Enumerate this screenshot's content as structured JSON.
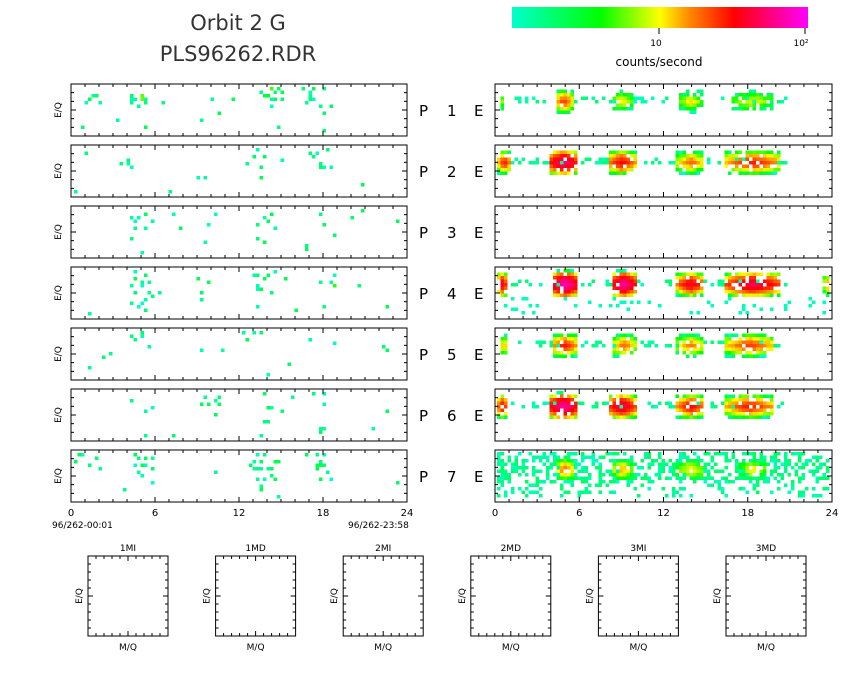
{
  "header": {
    "title_line1": "Orbit 2 G",
    "title_line2": "PLS96262.RDR"
  },
  "colorbar": {
    "label": "counts/second",
    "tick_labels": [
      "10",
      "10²"
    ],
    "tick_values": [
      10,
      100
    ],
    "range": [
      1,
      100
    ],
    "scale": "log",
    "stops": [
      "#00ffcc",
      "#00ff00",
      "#ffff00",
      "#ff8800",
      "#ff0000",
      "#ff00ff"
    ]
  },
  "chart_data": {
    "type": "heatmap",
    "x_range": [
      0,
      24
    ],
    "x_ticks": [
      0,
      6,
      12,
      18,
      24
    ],
    "x_tick_labels": [
      "0",
      "6",
      "12",
      "18",
      "24"
    ],
    "ylabel": "E/Q",
    "start_time_label": "96/262-00:01",
    "end_time_label": "96/262-23:58",
    "panels": [
      {
        "row_label": "P",
        "num": "1",
        "e_label": "E",
        "left_clusters": [
          {
            "x": 1,
            "d": 0.15
          },
          {
            "x": 5,
            "d": 0.35
          },
          {
            "x": 10,
            "d": 0.12
          },
          {
            "x": 14.5,
            "d": 0.45
          },
          {
            "x": 17.5,
            "d": 0.3
          }
        ],
        "right_bands": [
          {
            "x0": 0.2,
            "x1": 0.5,
            "v": 8
          },
          {
            "x0": 4.2,
            "x1": 5.5,
            "v": 25
          },
          {
            "x0": 8.3,
            "x1": 9.8,
            "v": 12
          },
          {
            "x0": 13.2,
            "x1": 14.8,
            "v": 12
          },
          {
            "x0": 16.8,
            "x1": 20,
            "v": 10
          }
        ]
      },
      {
        "row_label": "P",
        "num": "2",
        "e_label": "E",
        "left_clusters": [
          {
            "x": 4,
            "d": 0.15
          },
          {
            "x": 9,
            "d": 0.2
          },
          {
            "x": 13.5,
            "d": 0.15
          },
          {
            "x": 18,
            "d": 0.25
          }
        ],
        "right_bands": [
          {
            "x0": 0.1,
            "x1": 1.0,
            "v": 30
          },
          {
            "x0": 3.8,
            "x1": 5.8,
            "v": 60
          },
          {
            "x0": 8.0,
            "x1": 10.0,
            "v": 35
          },
          {
            "x0": 13.0,
            "x1": 15.0,
            "v": 20
          },
          {
            "x0": 16.5,
            "x1": 20.5,
            "v": 30
          }
        ]
      },
      {
        "row_label": "P",
        "num": "3",
        "e_label": "E",
        "left_clusters": [
          {
            "x": 5,
            "d": 0.2
          },
          {
            "x": 10,
            "d": 0.15
          },
          {
            "x": 14,
            "d": 0.25
          },
          {
            "x": 18.5,
            "d": 0.3
          }
        ],
        "right_bands": []
      },
      {
        "row_label": "P",
        "num": "4",
        "e_label": "E",
        "left_clusters": [
          {
            "x": 5,
            "d": 0.4
          },
          {
            "x": 9,
            "d": 0.15
          },
          {
            "x": 14,
            "d": 0.2
          },
          {
            "x": 19,
            "d": 0.35
          }
        ],
        "right_bands": [
          {
            "x0": 0,
            "x1": 0.8,
            "v": 40
          },
          {
            "x0": 4.0,
            "x1": 5.8,
            "v": 80
          },
          {
            "x0": 8.3,
            "x1": 10.0,
            "v": 70
          },
          {
            "x0": 13.0,
            "x1": 15.0,
            "v": 40
          },
          {
            "x0": 16.5,
            "x1": 20.5,
            "v": 50
          },
          {
            "x0": 23.6,
            "x1": 24,
            "v": 20
          }
        ]
      },
      {
        "row_label": "P",
        "num": "5",
        "e_label": "E",
        "left_clusters": [
          {
            "x": 3,
            "d": 0.08
          },
          {
            "x": 13,
            "d": 0.06
          },
          {
            "x": 17,
            "d": 0.1
          }
        ],
        "right_bands": [
          {
            "x0": 0.2,
            "x1": 0.8,
            "v": 15
          },
          {
            "x0": 4.0,
            "x1": 5.8,
            "v": 30
          },
          {
            "x0": 8.3,
            "x1": 10.0,
            "v": 20
          },
          {
            "x0": 13.0,
            "x1": 15.0,
            "v": 18
          },
          {
            "x0": 16.5,
            "x1": 20.0,
            "v": 25
          }
        ]
      },
      {
        "row_label": "P",
        "num": "6",
        "e_label": "E",
        "left_clusters": [
          {
            "x": 5,
            "d": 0.12
          },
          {
            "x": 10,
            "d": 0.12
          },
          {
            "x": 14,
            "d": 0.25
          },
          {
            "x": 18,
            "d": 0.15
          }
        ],
        "right_bands": [
          {
            "x0": 0,
            "x1": 0.8,
            "v": 35
          },
          {
            "x0": 3.8,
            "x1": 5.8,
            "v": 70
          },
          {
            "x0": 8.0,
            "x1": 10.0,
            "v": 50
          },
          {
            "x0": 13.0,
            "x1": 15.0,
            "v": 35
          },
          {
            "x0": 16.5,
            "x1": 20.0,
            "v": 30
          }
        ]
      },
      {
        "row_label": "P",
        "num": "7",
        "e_label": "E",
        "left_clusters": [
          {
            "x": 1,
            "d": 0.2
          },
          {
            "x": 5,
            "d": 0.3
          },
          {
            "x": 14,
            "d": 0.4
          },
          {
            "x": 18,
            "d": 0.35
          }
        ],
        "right_bands": [
          {
            "x0": 4.2,
            "x1": 5.6,
            "v": 20
          },
          {
            "x0": 8.3,
            "x1": 9.8,
            "v": 15
          },
          {
            "x0": 13.0,
            "x1": 15.0,
            "v": 12
          },
          {
            "x0": 17.5,
            "x1": 19.5,
            "v": 12
          }
        ]
      }
    ],
    "mass_panels": [
      {
        "title": "1MI",
        "xlabel": "M/Q",
        "ylabel": "E/Q"
      },
      {
        "title": "1MD",
        "xlabel": "M/Q",
        "ylabel": "E/Q"
      },
      {
        "title": "2MI",
        "xlabel": "M/Q",
        "ylabel": "E/Q"
      },
      {
        "title": "2MD",
        "xlabel": "M/Q",
        "ylabel": "E/Q"
      },
      {
        "title": "3MI",
        "xlabel": "M/Q",
        "ylabel": "E/Q"
      },
      {
        "title": "3MD",
        "xlabel": "M/Q",
        "ylabel": "E/Q"
      }
    ]
  }
}
